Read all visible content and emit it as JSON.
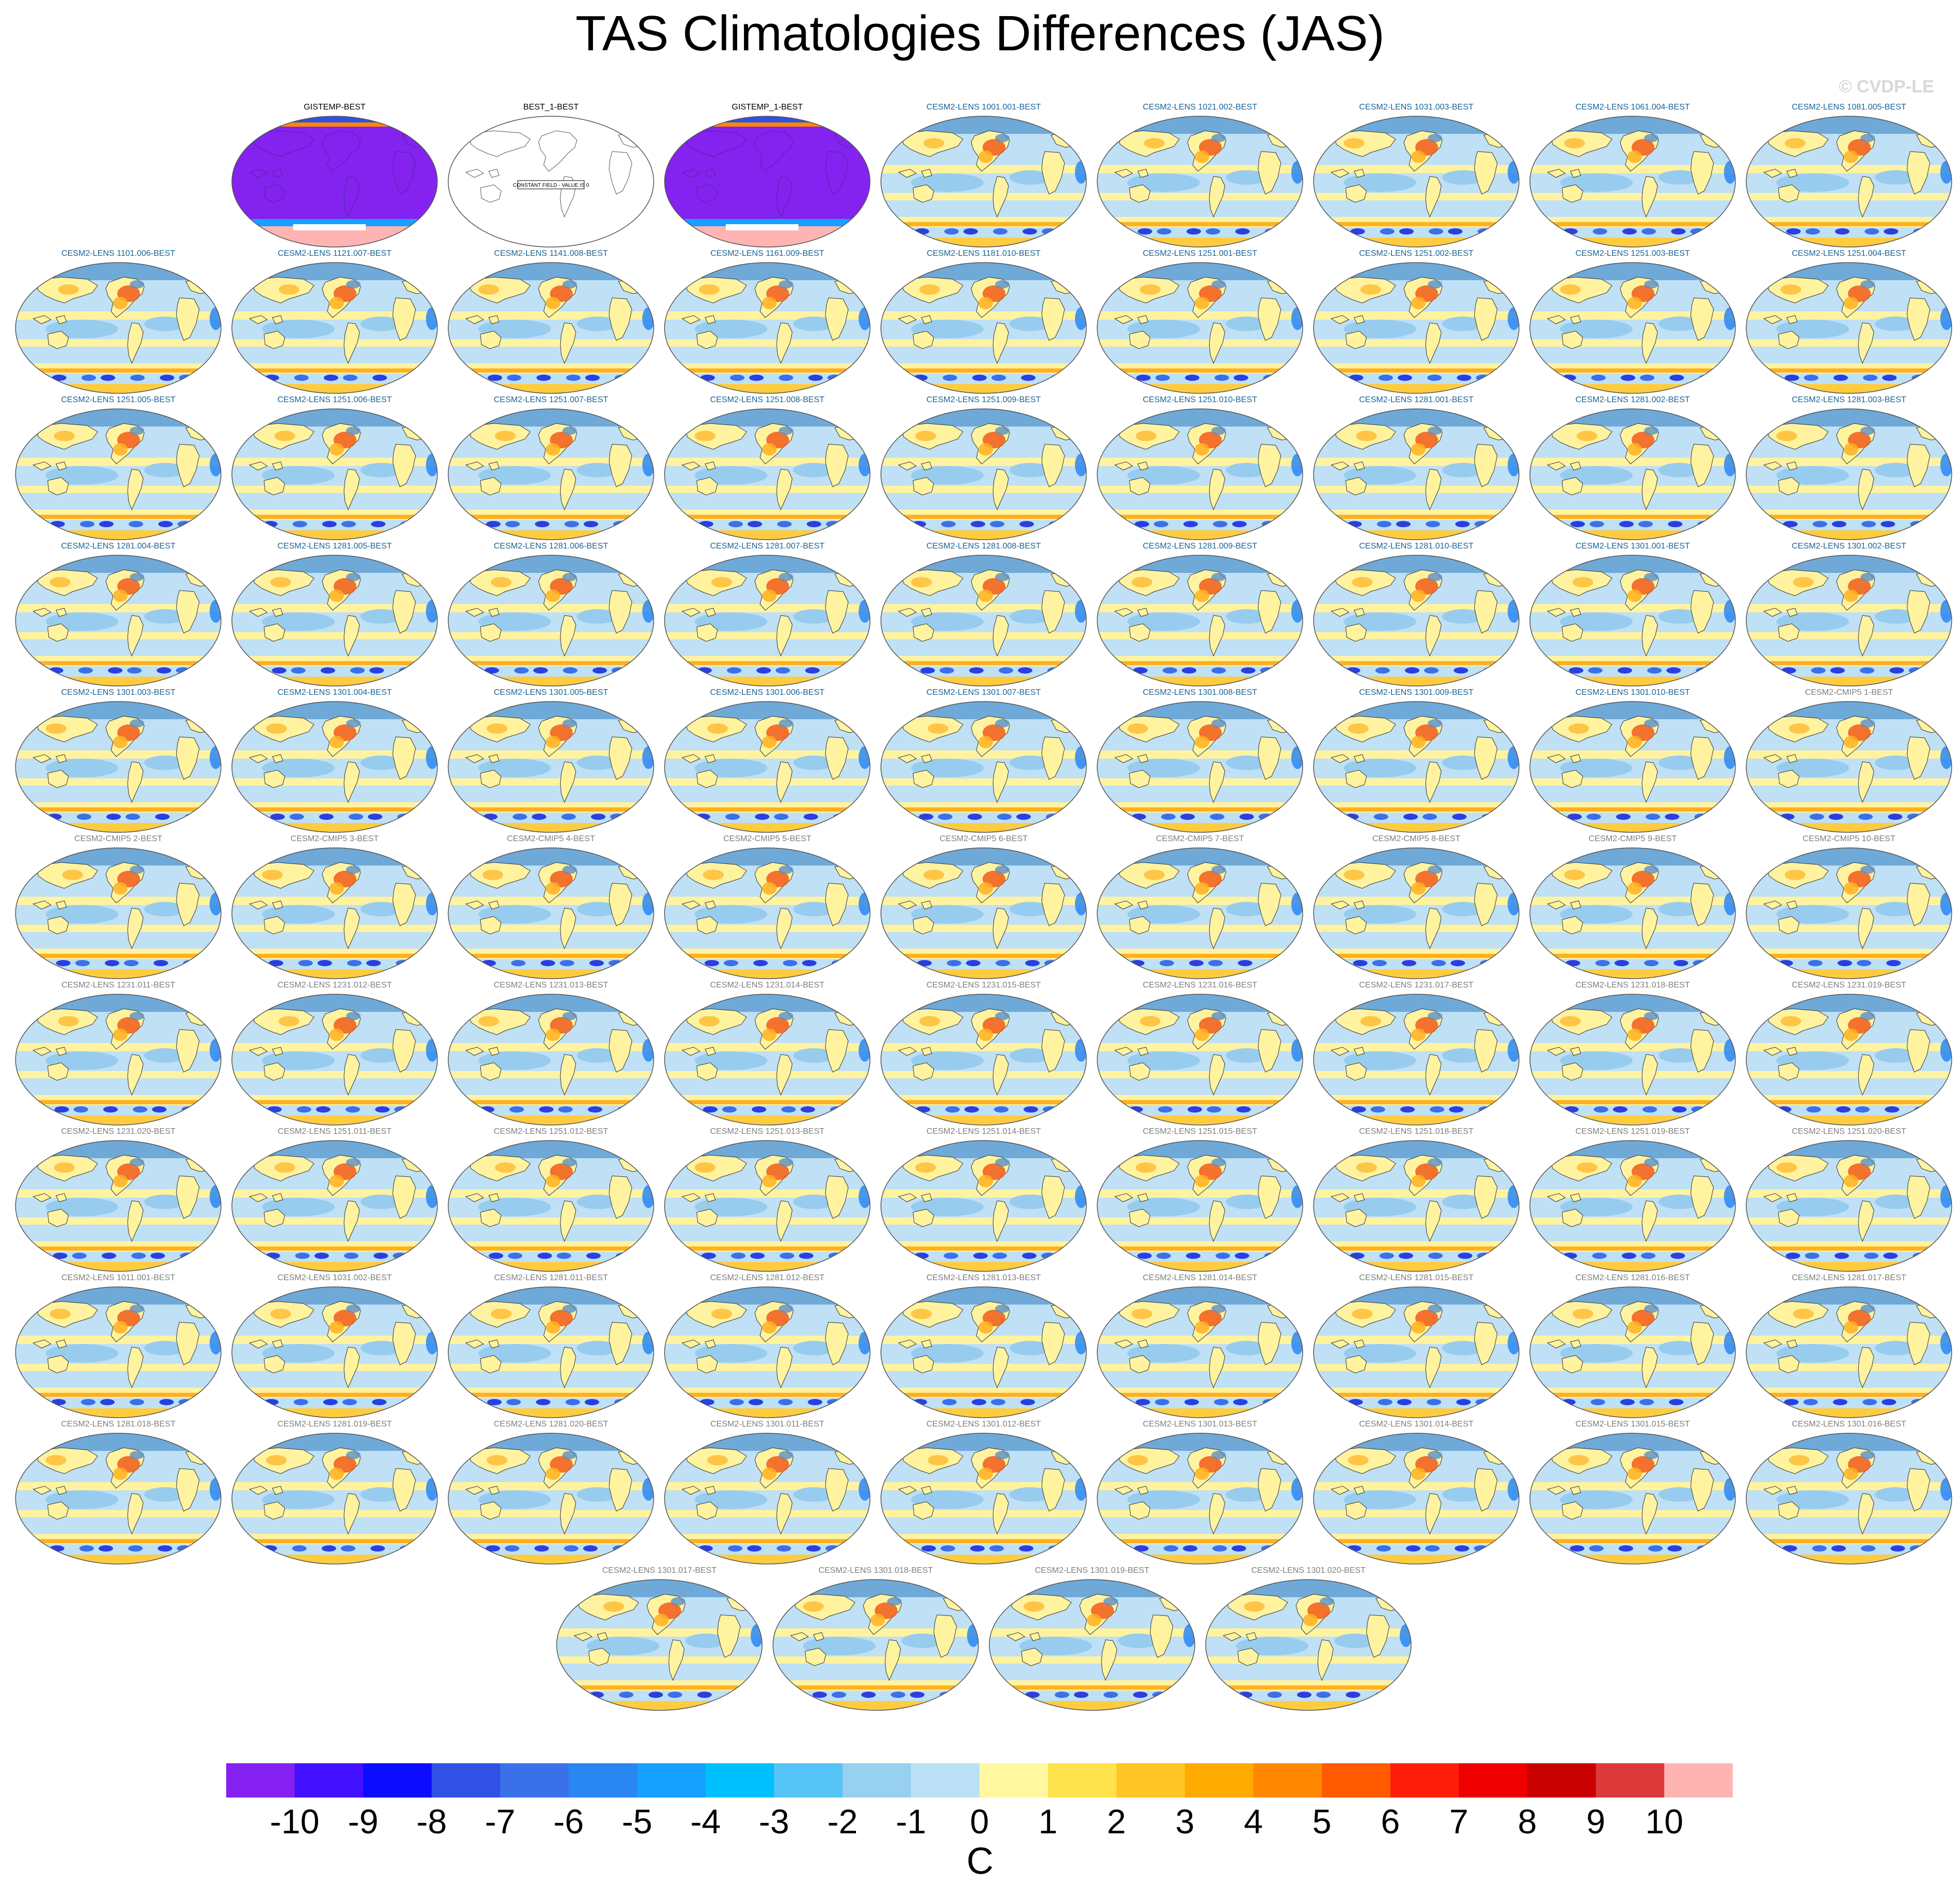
{
  "figure": {
    "title": "TAS Climatologies Differences (JAS)",
    "watermark": "© CVDP-LE",
    "units": "C"
  },
  "panels": [
    {
      "label": "GISTEMP-BEST",
      "style": "obs-cold"
    },
    {
      "label": "BEST_1-BEST",
      "style": "constant",
      "note": "CONSTANT FIELD - VALUE IS 0"
    },
    {
      "label": "GISTEMP_1-BEST",
      "style": "obs-cold"
    },
    {
      "label": "CESM2-LENS 1001.001-BEST",
      "style": "model"
    },
    {
      "label": "CESM2-LENS 1021.002-BEST",
      "style": "model"
    },
    {
      "label": "CESM2-LENS 1031.003-BEST",
      "style": "model"
    },
    {
      "label": "CESM2-LENS 1061.004-BEST",
      "style": "model"
    },
    {
      "label": "CESM2-LENS 1081.005-BEST",
      "style": "model"
    },
    {
      "label": "CESM2-LENS 1101.006-BEST",
      "style": "model"
    },
    {
      "label": "CESM2-LENS 1121.007-BEST",
      "style": "model"
    },
    {
      "label": "CESM2-LENS 1141.008-BEST",
      "style": "model"
    },
    {
      "label": "CESM2-LENS 1161.009-BEST",
      "style": "model"
    },
    {
      "label": "CESM2-LENS 1181.010-BEST",
      "style": "model"
    },
    {
      "label": "CESM2-LENS 1251.001-BEST",
      "style": "model"
    },
    {
      "label": "CESM2-LENS 1251.002-BEST",
      "style": "model"
    },
    {
      "label": "CESM2-LENS 1251.003-BEST",
      "style": "model"
    },
    {
      "label": "CESM2-LENS 1251.004-BEST",
      "style": "model"
    },
    {
      "label": "CESM2-LENS 1251.005-BEST",
      "style": "model"
    },
    {
      "label": "CESM2-LENS 1251.006-BEST",
      "style": "model"
    },
    {
      "label": "CESM2-LENS 1251.007-BEST",
      "style": "model"
    },
    {
      "label": "CESM2-LENS 1251.008-BEST",
      "style": "model"
    },
    {
      "label": "CESM2-LENS 1251.009-BEST",
      "style": "model"
    },
    {
      "label": "CESM2-LENS 1251.010-BEST",
      "style": "model"
    },
    {
      "label": "CESM2-LENS 1281.001-BEST",
      "style": "model"
    },
    {
      "label": "CESM2-LENS 1281.002-BEST",
      "style": "model"
    },
    {
      "label": "CESM2-LENS 1281.003-BEST",
      "style": "model"
    },
    {
      "label": "CESM2-LENS 1281.004-BEST",
      "style": "model"
    },
    {
      "label": "CESM2-LENS 1281.005-BEST",
      "style": "model"
    },
    {
      "label": "CESM2-LENS 1281.006-BEST",
      "style": "model"
    },
    {
      "label": "CESM2-LENS 1281.007-BEST",
      "style": "model"
    },
    {
      "label": "CESM2-LENS 1281.008-BEST",
      "style": "model"
    },
    {
      "label": "CESM2-LENS 1281.009-BEST",
      "style": "model"
    },
    {
      "label": "CESM2-LENS 1281.010-BEST",
      "style": "model"
    },
    {
      "label": "CESM2-LENS 1301.001-BEST",
      "style": "model"
    },
    {
      "label": "CESM2-LENS 1301.002-BEST",
      "style": "model"
    },
    {
      "label": "CESM2-LENS 1301.003-BEST",
      "style": "model"
    },
    {
      "label": "CESM2-LENS 1301.004-BEST",
      "style": "model"
    },
    {
      "label": "CESM2-LENS 1301.005-BEST",
      "style": "model"
    },
    {
      "label": "CESM2-LENS 1301.006-BEST",
      "style": "model"
    },
    {
      "label": "CESM2-LENS 1301.007-BEST",
      "style": "model"
    },
    {
      "label": "CESM2-LENS 1301.008-BEST",
      "style": "model"
    },
    {
      "label": "CESM2-LENS 1301.009-BEST",
      "style": "model"
    },
    {
      "label": "CESM2-LENS 1301.010-BEST",
      "style": "model"
    },
    {
      "label": "CESM2-CMIP5 1-BEST",
      "style": "model",
      "grey": true
    },
    {
      "label": "CESM2-CMIP5 2-BEST",
      "style": "model",
      "grey": true
    },
    {
      "label": "CESM2-CMIP5 3-BEST",
      "style": "model",
      "grey": true
    },
    {
      "label": "CESM2-CMIP5 4-BEST",
      "style": "model",
      "grey": true
    },
    {
      "label": "CESM2-CMIP5 5-BEST",
      "style": "model",
      "grey": true
    },
    {
      "label": "CESM2-CMIP5 6-BEST",
      "style": "model",
      "grey": true
    },
    {
      "label": "CESM2-CMIP5 7-BEST",
      "style": "model",
      "grey": true
    },
    {
      "label": "CESM2-CMIP5 8-BEST",
      "style": "model",
      "grey": true
    },
    {
      "label": "CESM2-CMIP5 9-BEST",
      "style": "model",
      "grey": true
    },
    {
      "label": "CESM2-CMIP5 10-BEST",
      "style": "model",
      "grey": true
    },
    {
      "label": "CESM2-LENS 1231.011-BEST",
      "style": "model",
      "grey": true
    },
    {
      "label": "CESM2-LENS 1231.012-BEST",
      "style": "model",
      "grey": true
    },
    {
      "label": "CESM2-LENS 1231.013-BEST",
      "style": "model",
      "grey": true
    },
    {
      "label": "CESM2-LENS 1231.014-BEST",
      "style": "model",
      "grey": true
    },
    {
      "label": "CESM2-LENS 1231.015-BEST",
      "style": "model",
      "grey": true
    },
    {
      "label": "CESM2-LENS 1231.016-BEST",
      "style": "model",
      "grey": true
    },
    {
      "label": "CESM2-LENS 1231.017-BEST",
      "style": "model",
      "grey": true
    },
    {
      "label": "CESM2-LENS 1231.018-BEST",
      "style": "model",
      "grey": true
    },
    {
      "label": "CESM2-LENS 1231.019-BEST",
      "style": "model",
      "grey": true
    },
    {
      "label": "CESM2-LENS 1231.020-BEST",
      "style": "model",
      "grey": true
    },
    {
      "label": "CESM2-LENS 1251.011-BEST",
      "style": "model",
      "grey": true
    },
    {
      "label": "CESM2-LENS 1251.012-BEST",
      "style": "model",
      "grey": true
    },
    {
      "label": "CESM2-LENS 1251.013-BEST",
      "style": "model",
      "grey": true
    },
    {
      "label": "CESM2-LENS 1251.014-BEST",
      "style": "model",
      "grey": true
    },
    {
      "label": "CESM2-LENS 1251.015-BEST",
      "style": "model",
      "grey": true
    },
    {
      "label": "CESM2-LENS 1251.018-BEST",
      "style": "model",
      "grey": true
    },
    {
      "label": "CESM2-LENS 1251.019-BEST",
      "style": "model",
      "grey": true
    },
    {
      "label": "CESM2-LENS 1251.020-BEST",
      "style": "model",
      "grey": true
    },
    {
      "label": "CESM2-LENS 1011.001-BEST",
      "style": "model",
      "grey": true
    },
    {
      "label": "CESM2-LENS 1031.002-BEST",
      "style": "model",
      "grey": true
    },
    {
      "label": "CESM2-LENS 1281.011-BEST",
      "style": "model",
      "grey": true
    },
    {
      "label": "CESM2-LENS 1281.012-BEST",
      "style": "model",
      "grey": true
    },
    {
      "label": "CESM2-LENS 1281.013-BEST",
      "style": "model",
      "grey": true
    },
    {
      "label": "CESM2-LENS 1281.014-BEST",
      "style": "model",
      "grey": true
    },
    {
      "label": "CESM2-LENS 1281.015-BEST",
      "style": "model",
      "grey": true
    },
    {
      "label": "CESM2-LENS 1281.016-BEST",
      "style": "model",
      "grey": true
    },
    {
      "label": "CESM2-LENS 1281.017-BEST",
      "style": "model",
      "grey": true
    },
    {
      "label": "CESM2-LENS 1281.018-BEST",
      "style": "model",
      "grey": true
    },
    {
      "label": "CESM2-LENS 1281.019-BEST",
      "style": "model",
      "grey": true
    },
    {
      "label": "CESM2-LENS 1281.020-BEST",
      "style": "model",
      "grey": true
    },
    {
      "label": "CESM2-LENS 1301.011-BEST",
      "style": "model",
      "grey": true
    },
    {
      "label": "CESM2-LENS 1301.012-BEST",
      "style": "model",
      "grey": true
    },
    {
      "label": "CESM2-LENS 1301.013-BEST",
      "style": "model",
      "grey": true
    },
    {
      "label": "CESM2-LENS 1301.014-BEST",
      "style": "model",
      "grey": true
    },
    {
      "label": "CESM2-LENS 1301.015-BEST",
      "style": "model",
      "grey": true
    },
    {
      "label": "CESM2-LENS 1301.016-BEST",
      "style": "model",
      "grey": true
    },
    {
      "label": "CESM2-LENS 1301.017-BEST",
      "style": "model",
      "grey": true
    },
    {
      "label": "CESM2-LENS 1301.018-BEST",
      "style": "model",
      "grey": true
    },
    {
      "label": "CESM2-LENS 1301.019-BEST",
      "style": "model",
      "grey": true
    },
    {
      "label": "CESM2-LENS 1301.020-BEST",
      "style": "model",
      "grey": true
    }
  ],
  "colorbar": {
    "colors": [
      "#8420f0",
      "#4010ff",
      "#0c0cff",
      "#3050e6",
      "#3a70e8",
      "#2a86f2",
      "#16a0ff",
      "#00c0ff",
      "#56c4f6",
      "#98d0f0",
      "#bce0f6",
      "#fff8a0",
      "#ffe34c",
      "#ffc525",
      "#ffaa00",
      "#ff8800",
      "#ff5a00",
      "#ff1e0a",
      "#ee0000",
      "#c80000",
      "#dc3a3a",
      "#ffb4b4"
    ],
    "labels": [
      "-10",
      "-9",
      "-8",
      "-7",
      "-6",
      "-5",
      "-4",
      "-3",
      "-2",
      "-1",
      "0",
      "1",
      "2",
      "3",
      "4",
      "5",
      "6",
      "7",
      "8",
      "9",
      "10"
    ]
  },
  "colors": {
    "title_blue": "#1a6496",
    "title_grey": "#7f7f7f",
    "coastline": "#333333",
    "ocean_light": "#bfe0f5",
    "ocean_mid": "#97ccee",
    "warm_yellow": "#fff3a0",
    "warm_orange": "#ffb020",
    "warm_red": "#f05a1a",
    "deep_blue": "#2a3fe0",
    "cold_purple": "#8422f0"
  }
}
